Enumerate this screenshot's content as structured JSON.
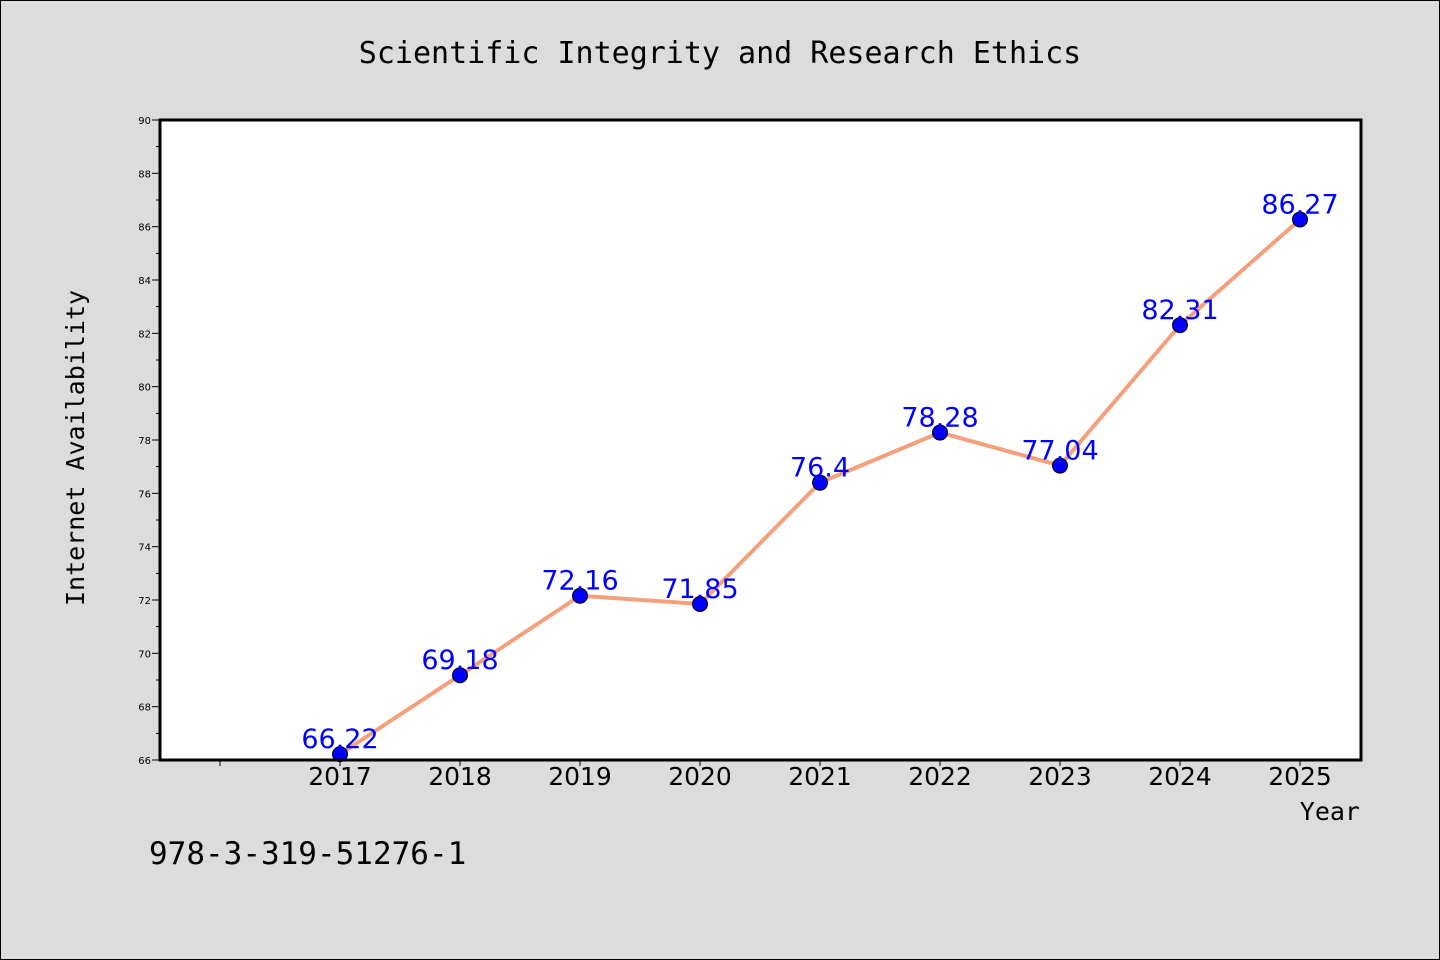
{
  "chart_data": {
    "type": "line",
    "title": "Scientific Integrity and Research Ethics",
    "xlabel": "Year",
    "ylabel": "Internet Availability",
    "categories": [
      "2017",
      "2018",
      "2019",
      "2020",
      "2021",
      "2022",
      "2023",
      "2024",
      "2025"
    ],
    "series": [
      {
        "values": [
          66.22,
          69.18,
          72.16,
          71.85,
          76.4,
          78.28,
          77.04,
          82.31,
          86.27
        ],
        "labels": [
          "66.22",
          "69.18",
          "72.16",
          "71.85",
          "76.4",
          "78.28",
          "77.04",
          "82.31",
          "86.27"
        ]
      }
    ],
    "ylim": [
      66,
      90
    ],
    "yticks": [
      66,
      68,
      70,
      72,
      74,
      76,
      78,
      80,
      82,
      84,
      86,
      88,
      90
    ],
    "grid": false,
    "line_color": "#f4a07c",
    "marker_color": "#0000ff",
    "label_color": "#0000ff"
  },
  "footer": {
    "isbn": "978-3-319-51276-1"
  }
}
